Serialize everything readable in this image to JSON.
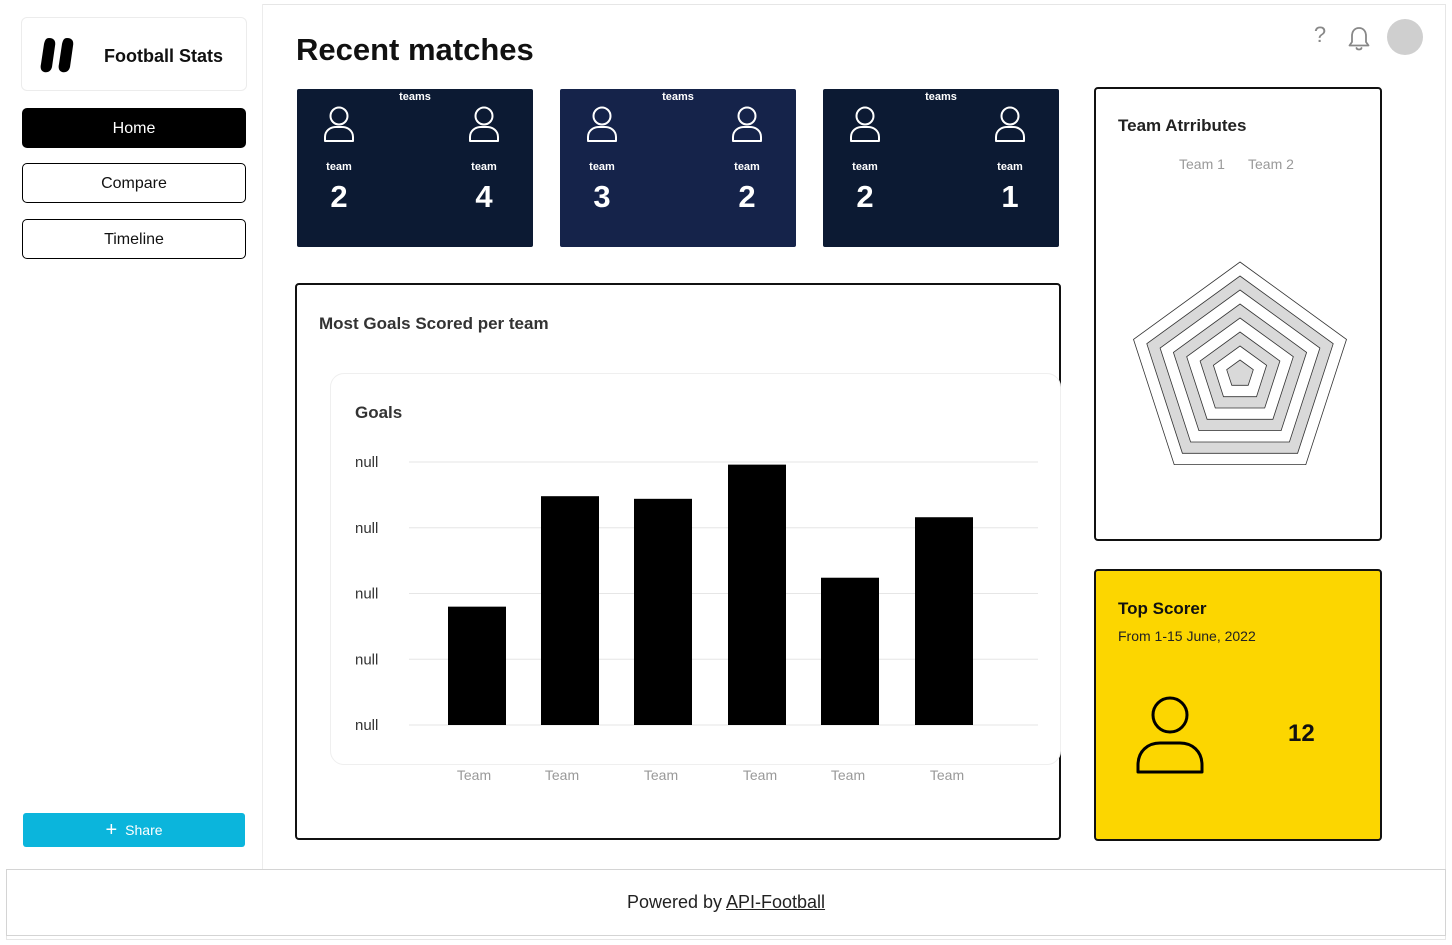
{
  "app": {
    "name": "Football Stats"
  },
  "sidebar": {
    "items": [
      {
        "label": "Home",
        "active": true
      },
      {
        "label": "Compare",
        "active": false
      },
      {
        "label": "Timeline",
        "active": false
      }
    ],
    "share_label": "Share"
  },
  "header": {
    "title": "Recent matches",
    "help_glyph": "?",
    "icons": [
      "help-icon",
      "bell-icon",
      "avatar"
    ]
  },
  "matches": [
    {
      "teams_label": "teams",
      "home": {
        "name": "team",
        "score": "2"
      },
      "away": {
        "name": "team",
        "score": "4"
      },
      "bg": "#0c1a33"
    },
    {
      "teams_label": "teams",
      "home": {
        "name": "team",
        "score": "3"
      },
      "away": {
        "name": "team",
        "score": "2"
      },
      "bg": "#15234a"
    },
    {
      "teams_label": "teams",
      "home": {
        "name": "team",
        "score": "2"
      },
      "away": {
        "name": "team",
        "score": "1"
      },
      "bg": "#0c1a33"
    }
  ],
  "goals_panel": {
    "title": "Most Goals Scored per team"
  },
  "chart_data": {
    "type": "bar",
    "title": "Goals",
    "categories": [
      "Team",
      "Team",
      "Team",
      "Team",
      "Team",
      "Team"
    ],
    "values": [
      45,
      87,
      86,
      99,
      56,
      79
    ],
    "ylim": [
      0,
      100
    ],
    "y_tick_labels": [
      "null",
      "null",
      "null",
      "null",
      "null"
    ],
    "xlabel": "",
    "ylabel": "",
    "grid": true,
    "bar_color": "#000000"
  },
  "attributes_panel": {
    "title": "Team Atrributes",
    "legend": [
      "Team 1",
      "Team 2"
    ]
  },
  "top_scorer": {
    "title": "Top Scorer",
    "period": "From 1-15 June, 2022",
    "goals": "12",
    "bg": "#fcd600"
  },
  "footer": {
    "prefix": "Powered by",
    "link": "API-Football"
  }
}
